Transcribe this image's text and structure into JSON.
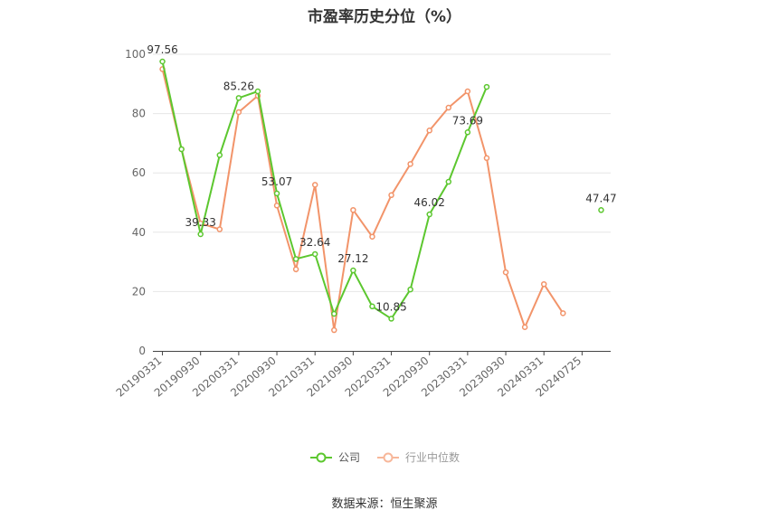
{
  "chart_data": {
    "type": "line",
    "title": "市盈率历史分位（%）",
    "ylim": [
      0,
      100
    ],
    "yticks": [
      0,
      20,
      40,
      60,
      80,
      100
    ],
    "x_tick_labels": [
      "20190331",
      "20190930",
      "20200331",
      "20200930",
      "20210331",
      "20210930",
      "20220331",
      "20220930",
      "20230331",
      "20230930",
      "20240331",
      "20240725"
    ],
    "series": [
      {
        "name": "公司",
        "color": "#5cc72f",
        "values": [
          97.56,
          68,
          39.33,
          66,
          85.26,
          87.5,
          53.07,
          31,
          32.64,
          12.5,
          27.12,
          15,
          10.85,
          20.7,
          46.02,
          57,
          73.69,
          89,
          null,
          null,
          null,
          null,
          null,
          47.47
        ],
        "labels": [
          "97.56",
          null,
          "39.33",
          null,
          "85.26",
          null,
          "53.07",
          null,
          "32.64",
          null,
          "27.12",
          null,
          "10.85",
          null,
          "46.02",
          null,
          "73.69",
          null,
          null,
          null,
          null,
          null,
          null,
          "47.47"
        ]
      },
      {
        "name": "行业中位数",
        "color": "#f2946a",
        "values": [
          95,
          68,
          43,
          41,
          80.5,
          86,
          49,
          27.5,
          56,
          7,
          47.5,
          38.5,
          52.5,
          63,
          74.3,
          82,
          87.5,
          65,
          26.5,
          8,
          22.5,
          12.7,
          null,
          null
        ],
        "labels": []
      }
    ],
    "legend": [
      "公司",
      "行业中位数"
    ],
    "legend_position": "bottom"
  },
  "source_text": "数据来源：恒生聚源"
}
